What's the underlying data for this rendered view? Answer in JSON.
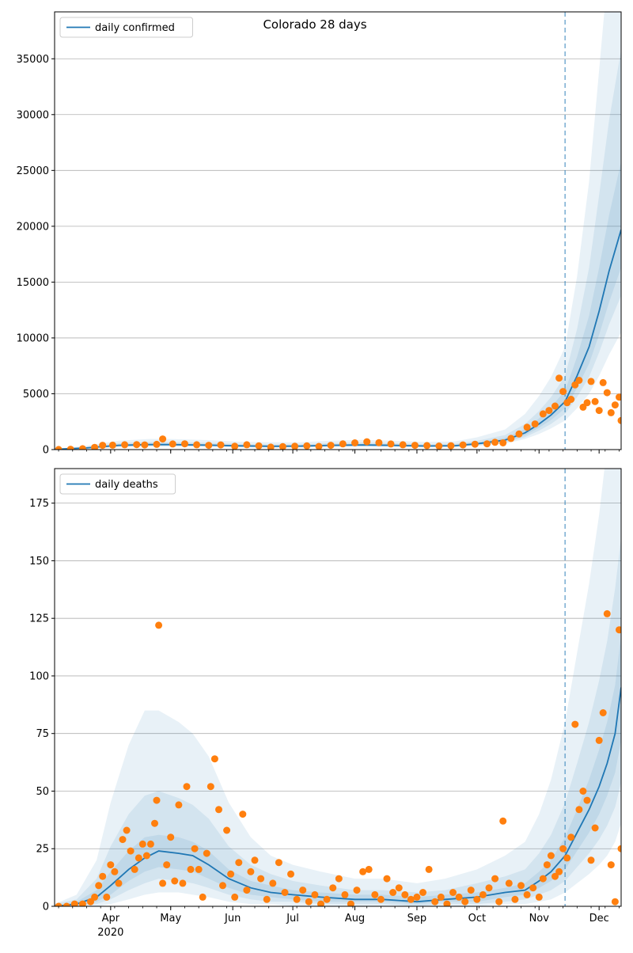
{
  "title": "Colorado 28 days",
  "colors": {
    "model": "#1f77b4",
    "observed": "#ff7f0e",
    "band": "#1f77b4",
    "grid": "#b0b0b0",
    "forecast_line": "#1f77b4"
  },
  "x_axis": {
    "months": [
      {
        "label": "Apr",
        "date": "2020-04-01"
      },
      {
        "label": "May",
        "date": "2020-05-01"
      },
      {
        "label": "Jun",
        "date": "2020-06-01"
      },
      {
        "label": "Jul",
        "date": "2020-07-01"
      },
      {
        "label": "Aug",
        "date": "2020-08-01"
      },
      {
        "label": "Sep",
        "date": "2020-09-01"
      },
      {
        "label": "Oct",
        "date": "2020-10-01"
      },
      {
        "label": "Nov",
        "date": "2020-11-01"
      },
      {
        "label": "Dec",
        "date": "2020-12-01"
      }
    ],
    "year_label": "2020",
    "range": [
      "2020-03-04",
      "2020-12-12"
    ]
  },
  "chart_data": [
    {
      "type": "line",
      "legend": "daily confirmed",
      "legend_position": "top-left",
      "ylim": [
        0,
        39200
      ],
      "yticks": [
        0,
        5000,
        10000,
        15000,
        20000,
        25000,
        30000,
        35000
      ],
      "grid": true,
      "forecast_start": "2020-11-14",
      "model": {
        "x": [
          "2020-03-04",
          "2020-03-20",
          "2020-04-05",
          "2020-04-20",
          "2020-05-01",
          "2020-05-20",
          "2020-06-05",
          "2020-06-20",
          "2020-07-05",
          "2020-07-20",
          "2020-08-05",
          "2020-08-20",
          "2020-09-05",
          "2020-09-20",
          "2020-10-01",
          "2020-10-15",
          "2020-10-25",
          "2020-11-01",
          "2020-11-07",
          "2020-11-14",
          "2020-11-20",
          "2020-11-26",
          "2020-12-01",
          "2020-12-06",
          "2020-12-12"
        ],
        "y": [
          20,
          150,
          380,
          450,
          450,
          400,
          330,
          300,
          310,
          380,
          420,
          380,
          320,
          350,
          520,
          850,
          1500,
          2300,
          3100,
          4300,
          6600,
          9200,
          12400,
          16000,
          19700
        ]
      },
      "bands": [
        {
          "level": "outer",
          "lo": [
            0,
            60,
            200,
            260,
            260,
            230,
            190,
            170,
            180,
            220,
            250,
            220,
            190,
            210,
            320,
            530,
            950,
            1400,
            1900,
            2600,
            3700,
            5000,
            6600,
            8500,
            10500
          ],
          "hi": [
            60,
            350,
            800,
            950,
            950,
            850,
            700,
            650,
            660,
            800,
            880,
            800,
            680,
            740,
            1100,
            1800,
            3200,
            4800,
            6500,
            9200,
            15500,
            24000,
            34000,
            44000,
            52000
          ]
        },
        {
          "level": "middle",
          "lo": [
            5,
            90,
            260,
            320,
            320,
            290,
            240,
            215,
            220,
            275,
            300,
            275,
            235,
            255,
            380,
            620,
            1120,
            1700,
            2300,
            3200,
            4700,
            6500,
            8700,
            11200,
            13800
          ],
          "hi": [
            40,
            250,
            580,
            680,
            680,
            610,
            500,
            460,
            470,
            580,
            640,
            580,
            490,
            530,
            790,
            1300,
            2300,
            3450,
            4700,
            6600,
            10800,
            16300,
            22800,
            29500,
            35800
          ]
        },
        {
          "level": "inner",
          "lo": [
            10,
            115,
            310,
            370,
            370,
            335,
            275,
            250,
            255,
            315,
            350,
            315,
            270,
            290,
            435,
            710,
            1280,
            1960,
            2650,
            3700,
            5500,
            7700,
            10300,
            13200,
            16300
          ],
          "hi": [
            30,
            195,
            470,
            550,
            550,
            490,
            400,
            370,
            380,
            470,
            520,
            470,
            400,
            430,
            640,
            1050,
            1850,
            2800,
            3800,
            5300,
            8300,
            12000,
            16300,
            21000,
            25800
          ]
        }
      ],
      "observed": {
        "x": [
          "2020-03-06",
          "2020-03-12",
          "2020-03-18",
          "2020-03-24",
          "2020-03-28",
          "2020-04-02",
          "2020-04-08",
          "2020-04-14",
          "2020-04-18",
          "2020-04-24",
          "2020-04-27",
          "2020-05-02",
          "2020-05-08",
          "2020-05-14",
          "2020-05-20",
          "2020-05-26",
          "2020-06-02",
          "2020-06-08",
          "2020-06-14",
          "2020-06-20",
          "2020-06-26",
          "2020-07-02",
          "2020-07-08",
          "2020-07-14",
          "2020-07-20",
          "2020-07-26",
          "2020-08-01",
          "2020-08-07",
          "2020-08-13",
          "2020-08-19",
          "2020-08-25",
          "2020-08-31",
          "2020-09-06",
          "2020-09-12",
          "2020-09-18",
          "2020-09-24",
          "2020-09-30",
          "2020-10-06",
          "2020-10-10",
          "2020-10-14",
          "2020-10-18",
          "2020-10-22",
          "2020-10-26",
          "2020-10-30",
          "2020-11-03",
          "2020-11-06",
          "2020-11-09",
          "2020-11-11",
          "2020-11-13",
          "2020-11-15",
          "2020-11-17",
          "2020-11-19",
          "2020-11-21",
          "2020-11-23",
          "2020-11-25",
          "2020-11-27",
          "2020-11-29",
          "2020-12-01",
          "2020-12-03",
          "2020-12-05",
          "2020-12-07",
          "2020-12-09",
          "2020-12-11",
          "2020-12-12"
        ],
        "y": [
          10,
          30,
          80,
          200,
          380,
          400,
          430,
          450,
          420,
          470,
          950,
          500,
          520,
          430,
          380,
          420,
          300,
          430,
          330,
          220,
          260,
          300,
          330,
          280,
          380,
          510,
          600,
          700,
          620,
          500,
          430,
          380,
          360,
          320,
          350,
          420,
          480,
          520,
          650,
          600,
          1000,
          1400,
          2000,
          2300,
          3200,
          3500,
          3900,
          6400,
          5200,
          4200,
          4500,
          5800,
          6200,
          3800,
          4200,
          6100,
          4300,
          3500,
          6000,
          5100,
          3300,
          4000,
          4700,
          2600
        ]
      }
    },
    {
      "type": "line",
      "legend": "daily deaths",
      "legend_position": "top-left",
      "ylim": [
        0,
        190
      ],
      "yticks": [
        0,
        25,
        50,
        75,
        100,
        125,
        150,
        175
      ],
      "grid": true,
      "forecast_start": "2020-11-14",
      "model": {
        "x": [
          "2020-03-04",
          "2020-03-15",
          "2020-03-25",
          "2020-04-01",
          "2020-04-10",
          "2020-04-18",
          "2020-04-25",
          "2020-05-05",
          "2020-05-12",
          "2020-05-20",
          "2020-05-30",
          "2020-06-10",
          "2020-06-20",
          "2020-07-01",
          "2020-07-15",
          "2020-08-01",
          "2020-08-15",
          "2020-09-01",
          "2020-09-15",
          "2020-10-01",
          "2020-10-15",
          "2020-10-25",
          "2020-11-01",
          "2020-11-07",
          "2020-11-14",
          "2020-11-20",
          "2020-11-26",
          "2020-12-01",
          "2020-12-05",
          "2020-12-09",
          "2020-12-12"
        ],
        "y": [
          0,
          1,
          4,
          9,
          16,
          21,
          24,
          23,
          22,
          18,
          12,
          8,
          6,
          5,
          4,
          3,
          3,
          2,
          3,
          4,
          6,
          7,
          11,
          15,
          22,
          32,
          42,
          52,
          62,
          75,
          95
        ]
      },
      "bands": [
        {
          "level": "outer",
          "lo": [
            0,
            0,
            0,
            1,
            3,
            5,
            6,
            6,
            5,
            4,
            2,
            1,
            1,
            0,
            0,
            0,
            0,
            0,
            0,
            0,
            1,
            1,
            2,
            3,
            6,
            10,
            14,
            18,
            22,
            28,
            36
          ],
          "hi": [
            1,
            5,
            20,
            45,
            70,
            85,
            85,
            80,
            75,
            65,
            45,
            30,
            22,
            18,
            15,
            12,
            12,
            10,
            12,
            16,
            22,
            28,
            40,
            55,
            80,
            110,
            140,
            170,
            200,
            240,
            280
          ]
        },
        {
          "level": "middle",
          "lo": [
            0,
            0,
            1,
            3,
            7,
            10,
            12,
            11,
            10,
            8,
            5,
            3,
            2,
            2,
            1,
            1,
            1,
            0,
            1,
            1,
            2,
            3,
            5,
            7,
            11,
            17,
            23,
            29,
            35,
            43,
            54
          ],
          "hi": [
            1,
            3,
            12,
            26,
            40,
            48,
            50,
            47,
            44,
            38,
            26,
            18,
            14,
            11,
            9,
            7,
            7,
            6,
            7,
            10,
            13,
            16,
            23,
            31,
            45,
            62,
            80,
            98,
            115,
            138,
            160
          ]
        },
        {
          "level": "inner",
          "lo": [
            0,
            0,
            2,
            5,
            11,
            15,
            17,
            16,
            15,
            12,
            8,
            5,
            4,
            3,
            2,
            2,
            2,
            1,
            2,
            2,
            4,
            5,
            8,
            11,
            16,
            24,
            32,
            40,
            48,
            58,
            72
          ],
          "hi": [
            0,
            2,
            7,
            15,
            24,
            30,
            31,
            30,
            28,
            24,
            16,
            11,
            9,
            7,
            6,
            5,
            5,
            4,
            5,
            6,
            8,
            10,
            15,
            20,
            30,
            42,
            55,
            68,
            80,
            96,
            118
          ]
        }
      ],
      "observed": {
        "x": [
          "2020-03-06",
          "2020-03-10",
          "2020-03-14",
          "2020-03-18",
          "2020-03-22",
          "2020-03-24",
          "2020-03-26",
          "2020-03-28",
          "2020-03-30",
          "2020-04-01",
          "2020-04-03",
          "2020-04-05",
          "2020-04-07",
          "2020-04-09",
          "2020-04-11",
          "2020-04-13",
          "2020-04-15",
          "2020-04-17",
          "2020-04-19",
          "2020-04-21",
          "2020-04-23",
          "2020-04-24",
          "2020-04-25",
          "2020-04-27",
          "2020-04-29",
          "2020-05-01",
          "2020-05-03",
          "2020-05-05",
          "2020-05-07",
          "2020-05-09",
          "2020-05-11",
          "2020-05-13",
          "2020-05-15",
          "2020-05-17",
          "2020-05-19",
          "2020-05-21",
          "2020-05-23",
          "2020-05-25",
          "2020-05-27",
          "2020-05-29",
          "2020-05-31",
          "2020-06-02",
          "2020-06-04",
          "2020-06-06",
          "2020-06-08",
          "2020-06-10",
          "2020-06-12",
          "2020-06-15",
          "2020-06-18",
          "2020-06-21",
          "2020-06-24",
          "2020-06-27",
          "2020-06-30",
          "2020-07-03",
          "2020-07-06",
          "2020-07-09",
          "2020-07-12",
          "2020-07-15",
          "2020-07-18",
          "2020-07-21",
          "2020-07-24",
          "2020-07-27",
          "2020-07-30",
          "2020-08-02",
          "2020-08-05",
          "2020-08-08",
          "2020-08-11",
          "2020-08-14",
          "2020-08-17",
          "2020-08-20",
          "2020-08-23",
          "2020-08-26",
          "2020-08-29",
          "2020-09-01",
          "2020-09-04",
          "2020-09-07",
          "2020-09-10",
          "2020-09-13",
          "2020-09-16",
          "2020-09-19",
          "2020-09-22",
          "2020-09-25",
          "2020-09-28",
          "2020-10-01",
          "2020-10-04",
          "2020-10-07",
          "2020-10-10",
          "2020-10-12",
          "2020-10-14",
          "2020-10-17",
          "2020-10-20",
          "2020-10-23",
          "2020-10-26",
          "2020-10-29",
          "2020-11-01",
          "2020-11-03",
          "2020-11-05",
          "2020-11-07",
          "2020-11-09",
          "2020-11-11",
          "2020-11-13",
          "2020-11-15",
          "2020-11-17",
          "2020-11-19",
          "2020-11-21",
          "2020-11-23",
          "2020-11-25",
          "2020-11-27",
          "2020-11-29",
          "2020-12-01",
          "2020-12-03",
          "2020-12-05",
          "2020-12-07",
          "2020-12-09",
          "2020-12-11",
          "2020-12-12"
        ],
        "y": [
          0,
          0,
          1,
          1,
          2,
          4,
          9,
          13,
          4,
          18,
          15,
          10,
          29,
          33,
          24,
          16,
          21,
          27,
          22,
          27,
          36,
          46,
          122,
          10,
          18,
          30,
          11,
          44,
          10,
          52,
          16,
          25,
          16,
          4,
          23,
          52,
          64,
          42,
          9,
          33,
          14,
          4,
          19,
          40,
          7,
          15,
          20,
          12,
          3,
          10,
          19,
          6,
          14,
          3,
          7,
          2,
          5,
          1,
          3,
          8,
          12,
          5,
          1,
          7,
          15,
          16,
          5,
          3,
          12,
          6,
          8,
          5,
          3,
          4,
          6,
          16,
          2,
          4,
          1,
          6,
          4,
          2,
          7,
          3,
          5,
          8,
          12,
          2,
          37,
          10,
          3,
          9,
          5,
          8,
          4,
          12,
          18,
          22,
          13,
          15,
          25,
          21,
          30,
          79,
          42,
          50,
          46,
          20,
          34,
          72,
          84,
          127,
          18,
          2,
          120,
          25
        ]
      }
    }
  ]
}
